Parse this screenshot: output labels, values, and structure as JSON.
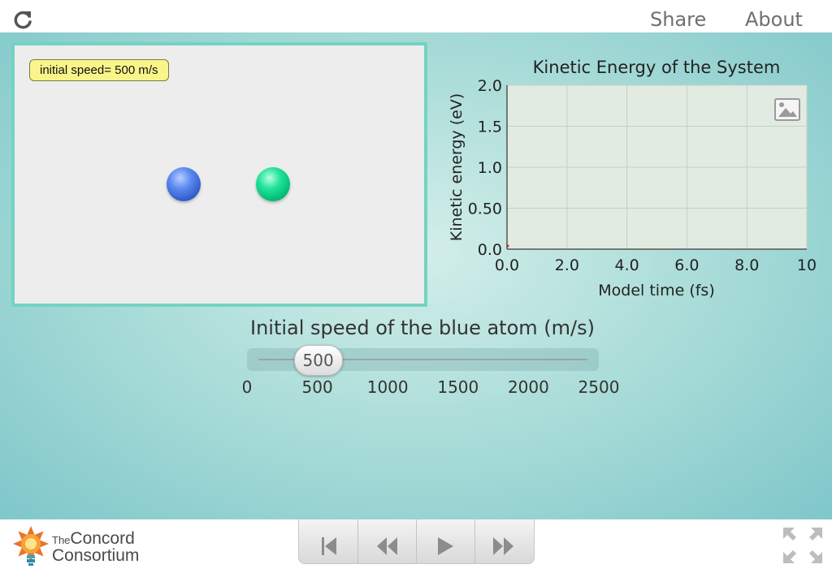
{
  "topbar": {
    "share_label": "Share",
    "about_label": "About"
  },
  "model": {
    "speed_label": "initial speed= 500 m/s",
    "atoms": [
      {
        "name": "blue-atom",
        "color": "#3f6fe0"
      },
      {
        "name": "green-atom",
        "color": "#00c47a"
      }
    ]
  },
  "chart_data": {
    "type": "line",
    "title": "Kinetic Energy of the System",
    "xlabel": "Model time (fs)",
    "ylabel": "Kinetic energy (eV)",
    "xlim": [
      0,
      10
    ],
    "ylim": [
      0,
      2.0
    ],
    "x_ticks": [
      "0.0",
      "2.0",
      "4.0",
      "6.0",
      "8.0",
      "10"
    ],
    "y_ticks": [
      "0.0",
      "0.50",
      "1.0",
      "1.5",
      "2.0"
    ],
    "grid": true,
    "series": [
      {
        "x": [
          0
        ],
        "y": [
          0.02
        ],
        "color": "#cc2222"
      }
    ]
  },
  "slider": {
    "title": "Initial speed of the blue atom (m/s)",
    "value": 500,
    "value_label": "500",
    "min": 0,
    "max": 2500,
    "ticks": [
      "0",
      "500",
      "1000",
      "1500",
      "2000",
      "2500"
    ]
  },
  "footer": {
    "logo_the": "The",
    "logo_line1": "Concord",
    "logo_line2": "Consortium"
  },
  "colors": {
    "accent": "#73d3c2",
    "stage": "#a9dcd8",
    "label_bg": "#f9f58a"
  }
}
